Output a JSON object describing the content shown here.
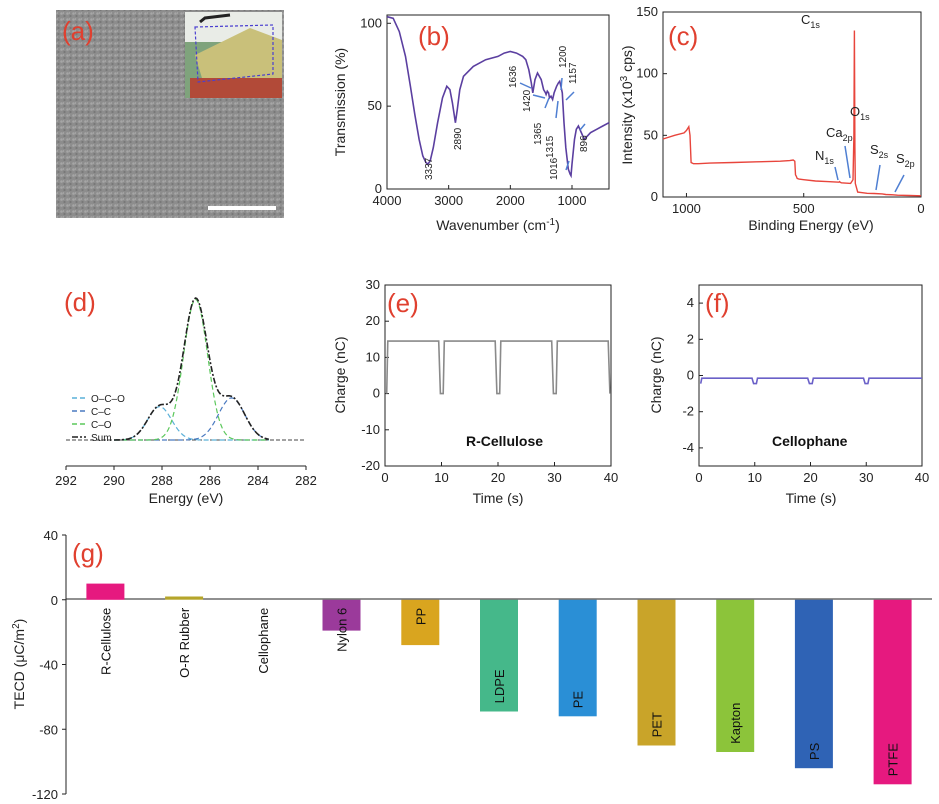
{
  "panels": {
    "a": {
      "letter": "(a)"
    },
    "b": {
      "letter": "(b)"
    },
    "c": {
      "letter": "(c)"
    },
    "d": {
      "letter": "(d)"
    },
    "e": {
      "letter": "(e)"
    },
    "f": {
      "letter": "(f)"
    },
    "g": {
      "letter": "(g)"
    }
  },
  "colors": {
    "ftir": "#5b3fa0",
    "xps": "#e8453c",
    "charge_e": "#8a8a8a",
    "charge_f": "#6a60c8",
    "panel_letter": "#e0402f"
  },
  "chart_data": [
    {
      "id": "b",
      "type": "line",
      "xlabel": "Wavenumber (cm",
      "xlabel_sup": "-1",
      "xlabel_end": ")",
      "ylabel": "Transmission (%)",
      "xlim": [
        4000,
        400
      ],
      "ylim": [
        0,
        105
      ],
      "xticks": [
        "4000",
        "3000",
        "2000",
        "1000"
      ],
      "yticks": [
        "0",
        "50",
        "100"
      ],
      "x": [
        4000,
        3900,
        3800,
        3700,
        3620,
        3550,
        3480,
        3420,
        3370,
        3337,
        3300,
        3250,
        3180,
        3100,
        3030,
        2980,
        2940,
        2890,
        2860,
        2820,
        2760,
        2600,
        2400,
        2200,
        2100,
        2000,
        1900,
        1800,
        1750,
        1700,
        1660,
        1636,
        1600,
        1560,
        1500,
        1460,
        1430,
        1420,
        1400,
        1380,
        1365,
        1340,
        1315,
        1290,
        1250,
        1220,
        1200,
        1180,
        1157,
        1130,
        1100,
        1060,
        1030,
        1016,
        1000,
        960,
        930,
        896,
        860,
        800,
        700,
        600,
        500,
        400
      ],
      "y": [
        104,
        103,
        95,
        80,
        62,
        45,
        30,
        20,
        16,
        15,
        17,
        25,
        40,
        55,
        62,
        60,
        52,
        40,
        48,
        60,
        68,
        74,
        78,
        80,
        82,
        83,
        82,
        80,
        78,
        72,
        64,
        58,
        66,
        70,
        66,
        60,
        58,
        57,
        59,
        58,
        55,
        56,
        54,
        58,
        62,
        64,
        65,
        62,
        58,
        40,
        25,
        12,
        9,
        8,
        15,
        30,
        36,
        38,
        35,
        30,
        34,
        36,
        38,
        40
      ]
    },
    {
      "id": "c",
      "type": "line",
      "xlabel": "Binding Energy (eV)",
      "ylabel": "Intensity (x10",
      "ylabel_sup": "3",
      "ylabel_end": " cps)",
      "xlim": [
        1100,
        0
      ],
      "ylim": [
        0,
        150
      ],
      "xticks": [
        "1000",
        "500",
        "0"
      ],
      "yticks": [
        "0",
        "50",
        "100",
        "150"
      ],
      "x": [
        1100,
        1050,
        1010,
        1000,
        990,
        985,
        980,
        970,
        950,
        900,
        800,
        700,
        600,
        560,
        545,
        538,
        535,
        532,
        528,
        520,
        500,
        450,
        400,
        350,
        347,
        345,
        340,
        300,
        290,
        286,
        284,
        282,
        280,
        270,
        250,
        230,
        200,
        165,
        150,
        120,
        100,
        50,
        0
      ],
      "y": [
        47,
        50,
        52,
        54,
        57,
        50,
        28,
        27,
        27,
        27.5,
        28,
        28.5,
        29,
        29.5,
        30,
        29,
        18,
        17,
        15,
        14.5,
        14,
        13,
        12.5,
        12,
        12.5,
        12,
        11.5,
        11,
        14,
        50,
        135,
        40,
        11,
        4,
        3.5,
        3,
        2.8,
        2.5,
        2,
        1.8,
        1.5,
        1.2,
        1
      ],
      "annotations": [
        {
          "base": "C",
          "sub": "1s"
        },
        {
          "base": "O",
          "sub": "1s"
        },
        {
          "base": "Ca",
          "sub": "2p"
        },
        {
          "base": "N",
          "sub": "1s"
        },
        {
          "base": "S",
          "sub": "2s"
        },
        {
          "base": "S",
          "sub": "2p"
        }
      ]
    },
    {
      "id": "d",
      "type": "line",
      "xlabel": "Energy (eV)",
      "xlim": [
        292,
        282
      ],
      "xticks": [
        "292",
        "290",
        "288",
        "286",
        "284",
        "282"
      ],
      "series": [
        {
          "name": "O–C–O",
          "center": 288.1,
          "height": 0.23,
          "width": 0.5,
          "color": "#5ab0d8",
          "dash": "5,3"
        },
        {
          "name": "C–C",
          "center": 285.1,
          "height": 0.29,
          "width": 0.55,
          "color": "#4a7ac0",
          "dash": "5,3"
        },
        {
          "name": "C–O",
          "center": 286.6,
          "height": 0.97,
          "width": 0.5,
          "color": "#5cc85c",
          "dash": "5,3"
        },
        {
          "name": "Sum",
          "color": "#222222",
          "dash": "6,2,2,2"
        }
      ]
    },
    {
      "id": "e",
      "type": "line",
      "title": "R-Cellulose",
      "xlabel": "Time (s)",
      "ylabel": "Charge (nC)",
      "xlim": [
        0,
        40
      ],
      "ylim": [
        -20,
        30
      ],
      "xticks": [
        "0",
        "10",
        "20",
        "30",
        "40"
      ],
      "yticks": [
        "-20",
        "-10",
        "0",
        "10",
        "20",
        "30"
      ],
      "plateau": 14.5,
      "low": 0,
      "dips_at": [
        10,
        20,
        30,
        40
      ]
    },
    {
      "id": "f",
      "type": "line",
      "title": "Cellophane",
      "xlabel": "Time (s)",
      "ylabel": "Charge (nC)",
      "xlim": [
        0,
        40
      ],
      "ylim": [
        -5,
        5
      ],
      "xticks": [
        "0",
        "10",
        "20",
        "30",
        "40"
      ],
      "yticks": [
        "-4",
        "-2",
        "0",
        "2",
        "4"
      ],
      "plateau": -0.15,
      "low": -0.45,
      "dips_at": [
        10,
        20,
        30
      ]
    },
    {
      "id": "g",
      "type": "bar",
      "ylabel": "TECD (μC/m",
      "ylabel_sup": "2",
      "ylabel_end": ")",
      "ylim": [
        -120,
        40
      ],
      "yticks": [
        "40",
        "0",
        "-40",
        "-80",
        "-120"
      ],
      "categories": [
        "R-Cellulose",
        "O-R Rubber",
        "Cellophane",
        "Nylon 6",
        "PP",
        "LDPE",
        "PE",
        "PET",
        "Kapton",
        "PS",
        "PTFE"
      ],
      "values": [
        10,
        2,
        0,
        -19,
        -28,
        -69,
        -72,
        -90,
        -94,
        -104,
        -114
      ],
      "colors": [
        "#e6197f",
        "#b5a52a",
        "#cccccc",
        "#9b3a9b",
        "#d9a51f",
        "#45b88a",
        "#2a8fd6",
        "#c9a429",
        "#8cc43a",
        "#2f63b5",
        "#e6197f"
      ]
    }
  ]
}
